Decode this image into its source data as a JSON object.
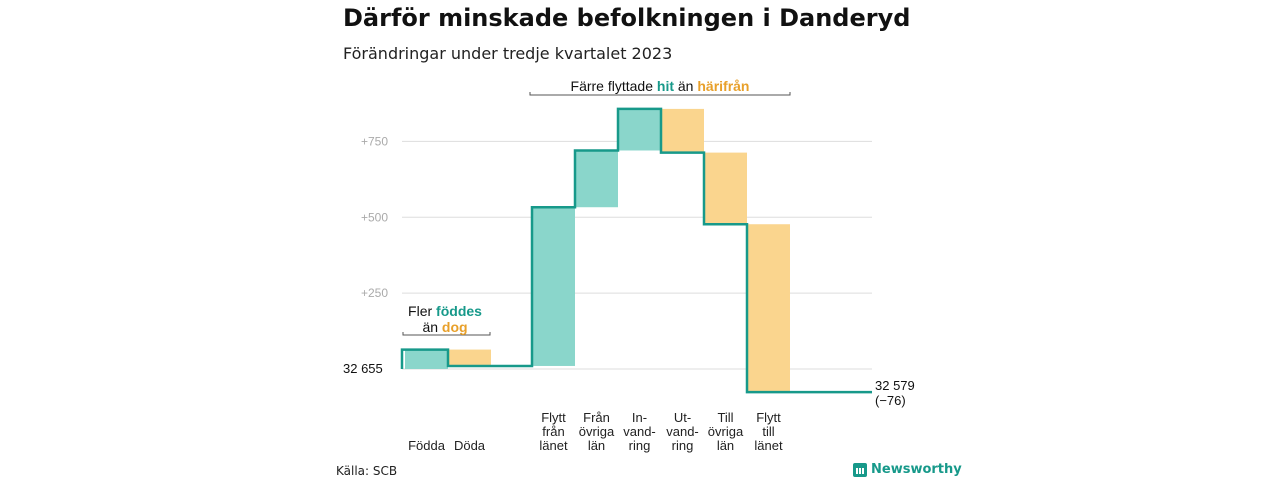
{
  "title": "Därför minskade befolkningen i Danderyd",
  "subtitle": "Förändringar under tredje kvartalet 2023",
  "source": "Källa: SCB",
  "brand": "Newsworthy",
  "annotations": {
    "births": {
      "prefix": "Fler ",
      "highlight1": "föddes",
      "middle": "än ",
      "highlight2": "dog"
    },
    "moves": {
      "prefix": "Färre flyttade ",
      "highlight1": "hit",
      "middle": " än ",
      "highlight2": "härifrån"
    }
  },
  "colors": {
    "increase": "#17998a",
    "increase_fill": "#8ad6cb",
    "decrease_fill": "#fad58e",
    "grid": "#dddddd",
    "tick_text": "#aaaaaa"
  },
  "chart_data": {
    "type": "waterfall",
    "start_label": "32  655",
    "end_label": [
      "32 579",
      "(−76)"
    ],
    "y_ticks": [
      {
        "value": 250,
        "label": "+250"
      },
      {
        "value": 500,
        "label": "+500"
      },
      {
        "value": 750,
        "label": "+750"
      }
    ],
    "ylim": [
      -76,
      857
    ],
    "steps": [
      {
        "category": [
          "Födda"
        ],
        "from": 0,
        "to": 64,
        "kind": "increase"
      },
      {
        "category": [
          "Döda"
        ],
        "from": 64,
        "to": 10,
        "kind": "decrease"
      },
      {
        "category": [
          "Flytt",
          "från",
          "länet"
        ],
        "from": 10,
        "to": 533,
        "kind": "increase"
      },
      {
        "category": [
          "Från",
          "övriga",
          "län"
        ],
        "from": 533,
        "to": 720,
        "kind": "increase"
      },
      {
        "category": [
          "In-",
          "vand-",
          "ring"
        ],
        "from": 720,
        "to": 857,
        "kind": "increase"
      },
      {
        "category": [
          "Ut-",
          "vand-",
          "ring"
        ],
        "from": 857,
        "to": 713,
        "kind": "decrease"
      },
      {
        "category": [
          "Till",
          "övriga",
          "län"
        ],
        "from": 713,
        "to": 477,
        "kind": "decrease"
      },
      {
        "category": [
          "Flytt",
          "till",
          "länet"
        ],
        "from": 477,
        "to": -76,
        "kind": "decrease"
      }
    ]
  }
}
